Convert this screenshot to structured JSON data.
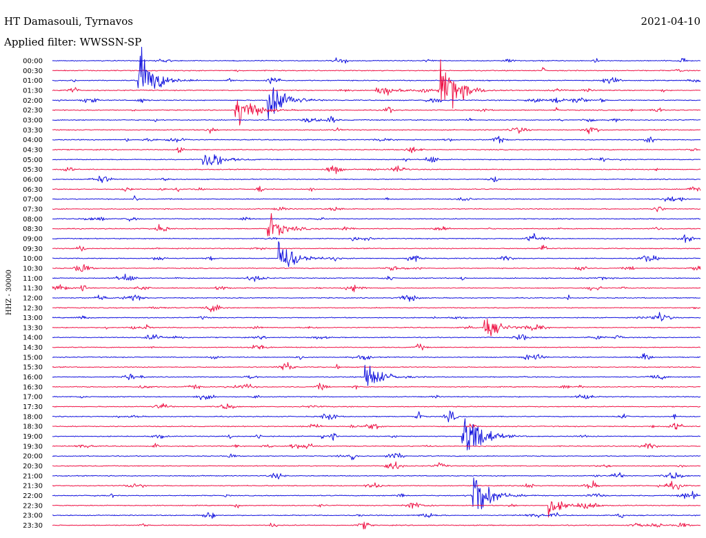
{
  "header": {
    "station": "HT Damasouli, Tyrnavos",
    "date": "2021-04-10",
    "filter": "Applied filter: WWSSN-SP"
  },
  "chart_data": {
    "type": "line",
    "title": "HT Damasouli, Tyrnavos",
    "subtitle": "Applied filter: WWSSN-SP",
    "date": "2021-04-10",
    "ylabel": "HHZ - 30000",
    "xlabel": "",
    "grid": false,
    "legend": "none",
    "colors": [
      "#1010dd",
      "#ee1144"
    ],
    "rows": [
      "00:00",
      "00:30",
      "01:00",
      "01:30",
      "02:00",
      "02:30",
      "03:00",
      "03:30",
      "04:00",
      "04:30",
      "05:00",
      "05:30",
      "06:00",
      "06:30",
      "07:00",
      "07:30",
      "08:00",
      "08:30",
      "09:00",
      "09:30",
      "10:00",
      "10:30",
      "11:00",
      "11:30",
      "12:00",
      "12:30",
      "13:00",
      "13:30",
      "14:00",
      "14:30",
      "15:00",
      "15:30",
      "16:00",
      "16:30",
      "17:00",
      "17:30",
      "18:00",
      "18:30",
      "19:00",
      "19:30",
      "20:00",
      "20:30",
      "21:00",
      "21:30",
      "22:00",
      "22:30",
      "23:00",
      "23:30"
    ],
    "events": [
      {
        "row": "01:00",
        "minute": 4.0,
        "amp": 70
      },
      {
        "row": "01:30",
        "minute": 15.0,
        "amp": 18
      },
      {
        "row": "02:00",
        "minute": 10.0,
        "amp": 55
      },
      {
        "row": "01:30",
        "minute": 18.0,
        "amp": 80
      },
      {
        "row": "02:30",
        "minute": 8.5,
        "amp": 40
      },
      {
        "row": "05:00",
        "minute": 7.0,
        "amp": 22
      },
      {
        "row": "08:30",
        "minute": 10.0,
        "amp": 28
      },
      {
        "row": "10:00",
        "minute": 10.5,
        "amp": 45
      },
      {
        "row": "13:30",
        "minute": 20.0,
        "amp": 25
      },
      {
        "row": "16:00",
        "minute": 14.5,
        "amp": 35
      },
      {
        "row": "19:00",
        "minute": 19.0,
        "amp": 70
      },
      {
        "row": "22:00",
        "minute": 19.5,
        "amp": 55
      },
      {
        "row": "22:30",
        "minute": 23.0,
        "amp": 18
      }
    ]
  }
}
